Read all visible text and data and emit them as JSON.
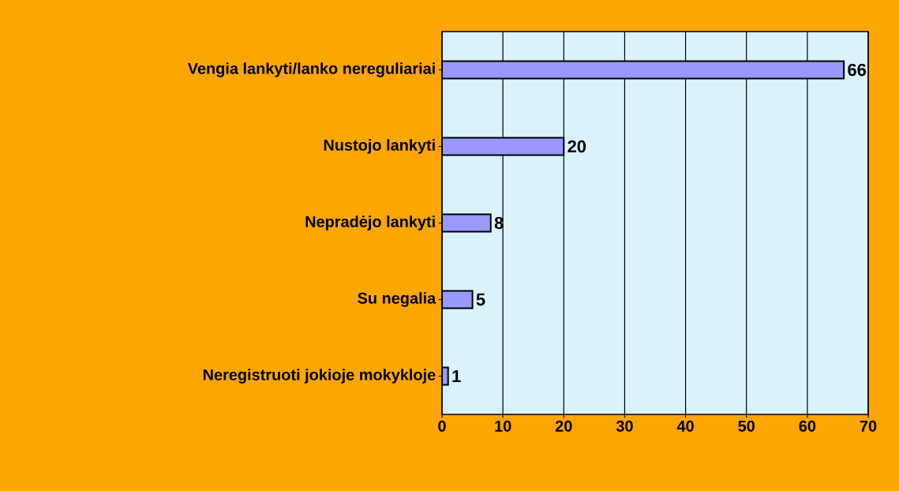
{
  "chart_data": {
    "type": "bar",
    "orientation": "horizontal",
    "categories": [
      "Vengia lankyti/lanko nereguliariai",
      "Nustojo lankyti",
      "Nepradėjo lankyti",
      "Su negalia",
      "Neregistruoti jokioje mokykloje"
    ],
    "values": [
      66,
      20,
      8,
      5,
      1
    ],
    "color": "#9999ff",
    "xlim": [
      0,
      70
    ],
    "xticks": [
      0,
      10,
      20,
      30,
      40,
      50,
      60,
      70
    ],
    "grid": "x",
    "data_labels": true
  }
}
